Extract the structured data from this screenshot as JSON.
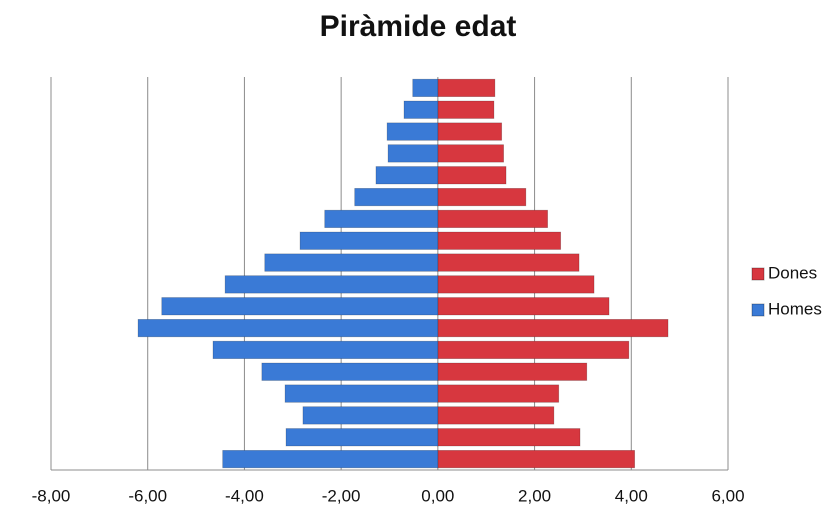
{
  "chart_data": {
    "type": "bar",
    "orientation": "horizontal",
    "title": "Piràmide edat",
    "series": [
      {
        "name": "Dones",
        "color": "#d7373f",
        "values": [
          4.07,
          2.94,
          2.4,
          2.5,
          3.08,
          3.95,
          4.76,
          3.54,
          3.23,
          2.92,
          2.54,
          2.27,
          1.82,
          1.41,
          1.36,
          1.32,
          1.16,
          1.18
        ]
      },
      {
        "name": "Homes",
        "color": "#3a7ad6",
        "values": [
          -4.45,
          -3.14,
          -2.79,
          -3.16,
          -3.64,
          -4.65,
          -6.2,
          -5.71,
          -4.4,
          -3.58,
          -2.85,
          -2.34,
          -1.72,
          -1.28,
          -1.03,
          -1.05,
          -0.7,
          -0.52
        ]
      }
    ],
    "xlim": [
      -8,
      6
    ],
    "xticks": [
      {
        "value": -8,
        "label": "-8,00"
      },
      {
        "value": -6,
        "label": "-6,00"
      },
      {
        "value": -4,
        "label": "-4,00"
      },
      {
        "value": -2,
        "label": "-2,00"
      },
      {
        "value": 0,
        "label": "0,00"
      },
      {
        "value": 2,
        "label": "2,00"
      },
      {
        "value": 4,
        "label": "4,00"
      },
      {
        "value": 6,
        "label": "6,00"
      }
    ],
    "grid": true,
    "legend": "right"
  }
}
